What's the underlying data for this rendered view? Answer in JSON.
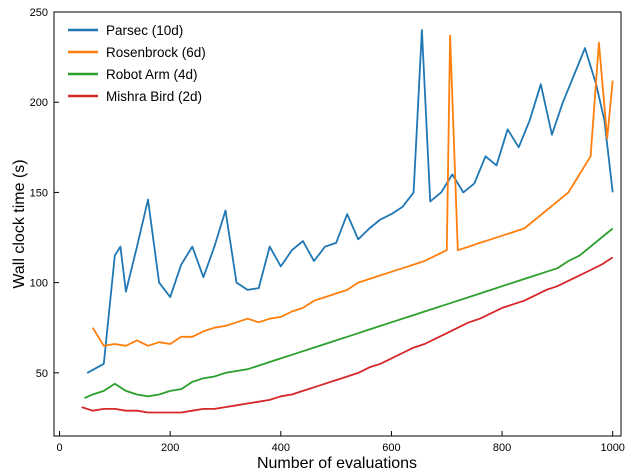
{
  "chart_data": {
    "type": "line",
    "xlabel": "Number of evaluations",
    "ylabel": "Wall clock time (s)",
    "xlim": [
      -10,
      1015
    ],
    "ylim": [
      15,
      250
    ],
    "xticks": [
      0,
      200,
      400,
      600,
      800,
      1000
    ],
    "yticks": [
      50,
      100,
      150,
      200,
      250
    ],
    "grid": false,
    "legend_position": "top-left",
    "series": [
      {
        "name": "Parsec (10d)",
        "color": "#1f77b4",
        "x": [
          50,
          80,
          100,
          110,
          120,
          140,
          160,
          180,
          200,
          220,
          240,
          260,
          280,
          300,
          320,
          340,
          360,
          380,
          400,
          420,
          440,
          460,
          480,
          500,
          520,
          540,
          560,
          580,
          600,
          620,
          640,
          655,
          670,
          690,
          710,
          730,
          750,
          770,
          790,
          810,
          830,
          850,
          870,
          890,
          910,
          930,
          950,
          970,
          985,
          1000
        ],
        "y": [
          50,
          55,
          115,
          120,
          95,
          120,
          146,
          100,
          92,
          110,
          120,
          103,
          120,
          140,
          100,
          96,
          97,
          120,
          109,
          118,
          123,
          112,
          120,
          122,
          138,
          124,
          130,
          135,
          138,
          142,
          150,
          240,
          145,
          150,
          160,
          150,
          155,
          170,
          165,
          185,
          175,
          190,
          210,
          182,
          200,
          215,
          230,
          210,
          190,
          150
        ]
      },
      {
        "name": "Rosenbrock (6d)",
        "color": "#ff7f0e",
        "x": [
          60,
          80,
          100,
          120,
          140,
          160,
          180,
          200,
          220,
          240,
          260,
          280,
          300,
          320,
          340,
          360,
          380,
          400,
          420,
          440,
          460,
          480,
          500,
          520,
          540,
          560,
          580,
          600,
          620,
          640,
          660,
          680,
          700,
          706,
          720,
          740,
          760,
          780,
          800,
          820,
          840,
          860,
          880,
          900,
          920,
          940,
          960,
          975,
          990,
          1000
        ],
        "y": [
          75,
          65,
          66,
          65,
          68,
          65,
          67,
          66,
          70,
          70,
          73,
          75,
          76,
          78,
          80,
          78,
          80,
          81,
          84,
          86,
          90,
          92,
          94,
          96,
          100,
          102,
          104,
          106,
          108,
          110,
          112,
          115,
          118,
          237,
          118,
          120,
          122,
          124,
          126,
          128,
          130,
          135,
          140,
          145,
          150,
          160,
          170,
          233,
          180,
          212
        ]
      },
      {
        "name": "Robot Arm (4d)",
        "color": "#2ca02c",
        "x": [
          45,
          60,
          80,
          100,
          120,
          140,
          160,
          180,
          200,
          220,
          240,
          260,
          280,
          300,
          320,
          340,
          360,
          380,
          400,
          420,
          440,
          460,
          480,
          500,
          520,
          540,
          560,
          580,
          600,
          620,
          640,
          660,
          680,
          700,
          720,
          740,
          760,
          780,
          800,
          820,
          840,
          860,
          880,
          900,
          920,
          940,
          960,
          980,
          1000
        ],
        "y": [
          36,
          38,
          40,
          44,
          40,
          38,
          37,
          38,
          40,
          41,
          45,
          47,
          48,
          50,
          51,
          52,
          54,
          56,
          58,
          60,
          62,
          64,
          66,
          68,
          70,
          72,
          74,
          76,
          78,
          80,
          82,
          84,
          86,
          88,
          90,
          92,
          94,
          96,
          98,
          100,
          102,
          104,
          106,
          108,
          112,
          115,
          120,
          125,
          130
        ]
      },
      {
        "name": "Mishra Bird (2d)",
        "color": "#d62728",
        "x": [
          40,
          60,
          80,
          100,
          120,
          140,
          160,
          180,
          200,
          220,
          240,
          260,
          280,
          300,
          320,
          340,
          360,
          380,
          400,
          420,
          440,
          460,
          480,
          500,
          520,
          540,
          560,
          580,
          600,
          620,
          640,
          660,
          680,
          700,
          720,
          740,
          760,
          780,
          800,
          820,
          840,
          860,
          880,
          900,
          920,
          940,
          960,
          980,
          1000
        ],
        "y": [
          31,
          29,
          30,
          30,
          29,
          29,
          28,
          28,
          28,
          28,
          29,
          30,
          30,
          31,
          32,
          33,
          34,
          35,
          37,
          38,
          40,
          42,
          44,
          46,
          48,
          50,
          53,
          55,
          58,
          61,
          64,
          66,
          69,
          72,
          75,
          78,
          80,
          83,
          86,
          88,
          90,
          93,
          96,
          98,
          101,
          104,
          107,
          110,
          114
        ]
      }
    ]
  }
}
